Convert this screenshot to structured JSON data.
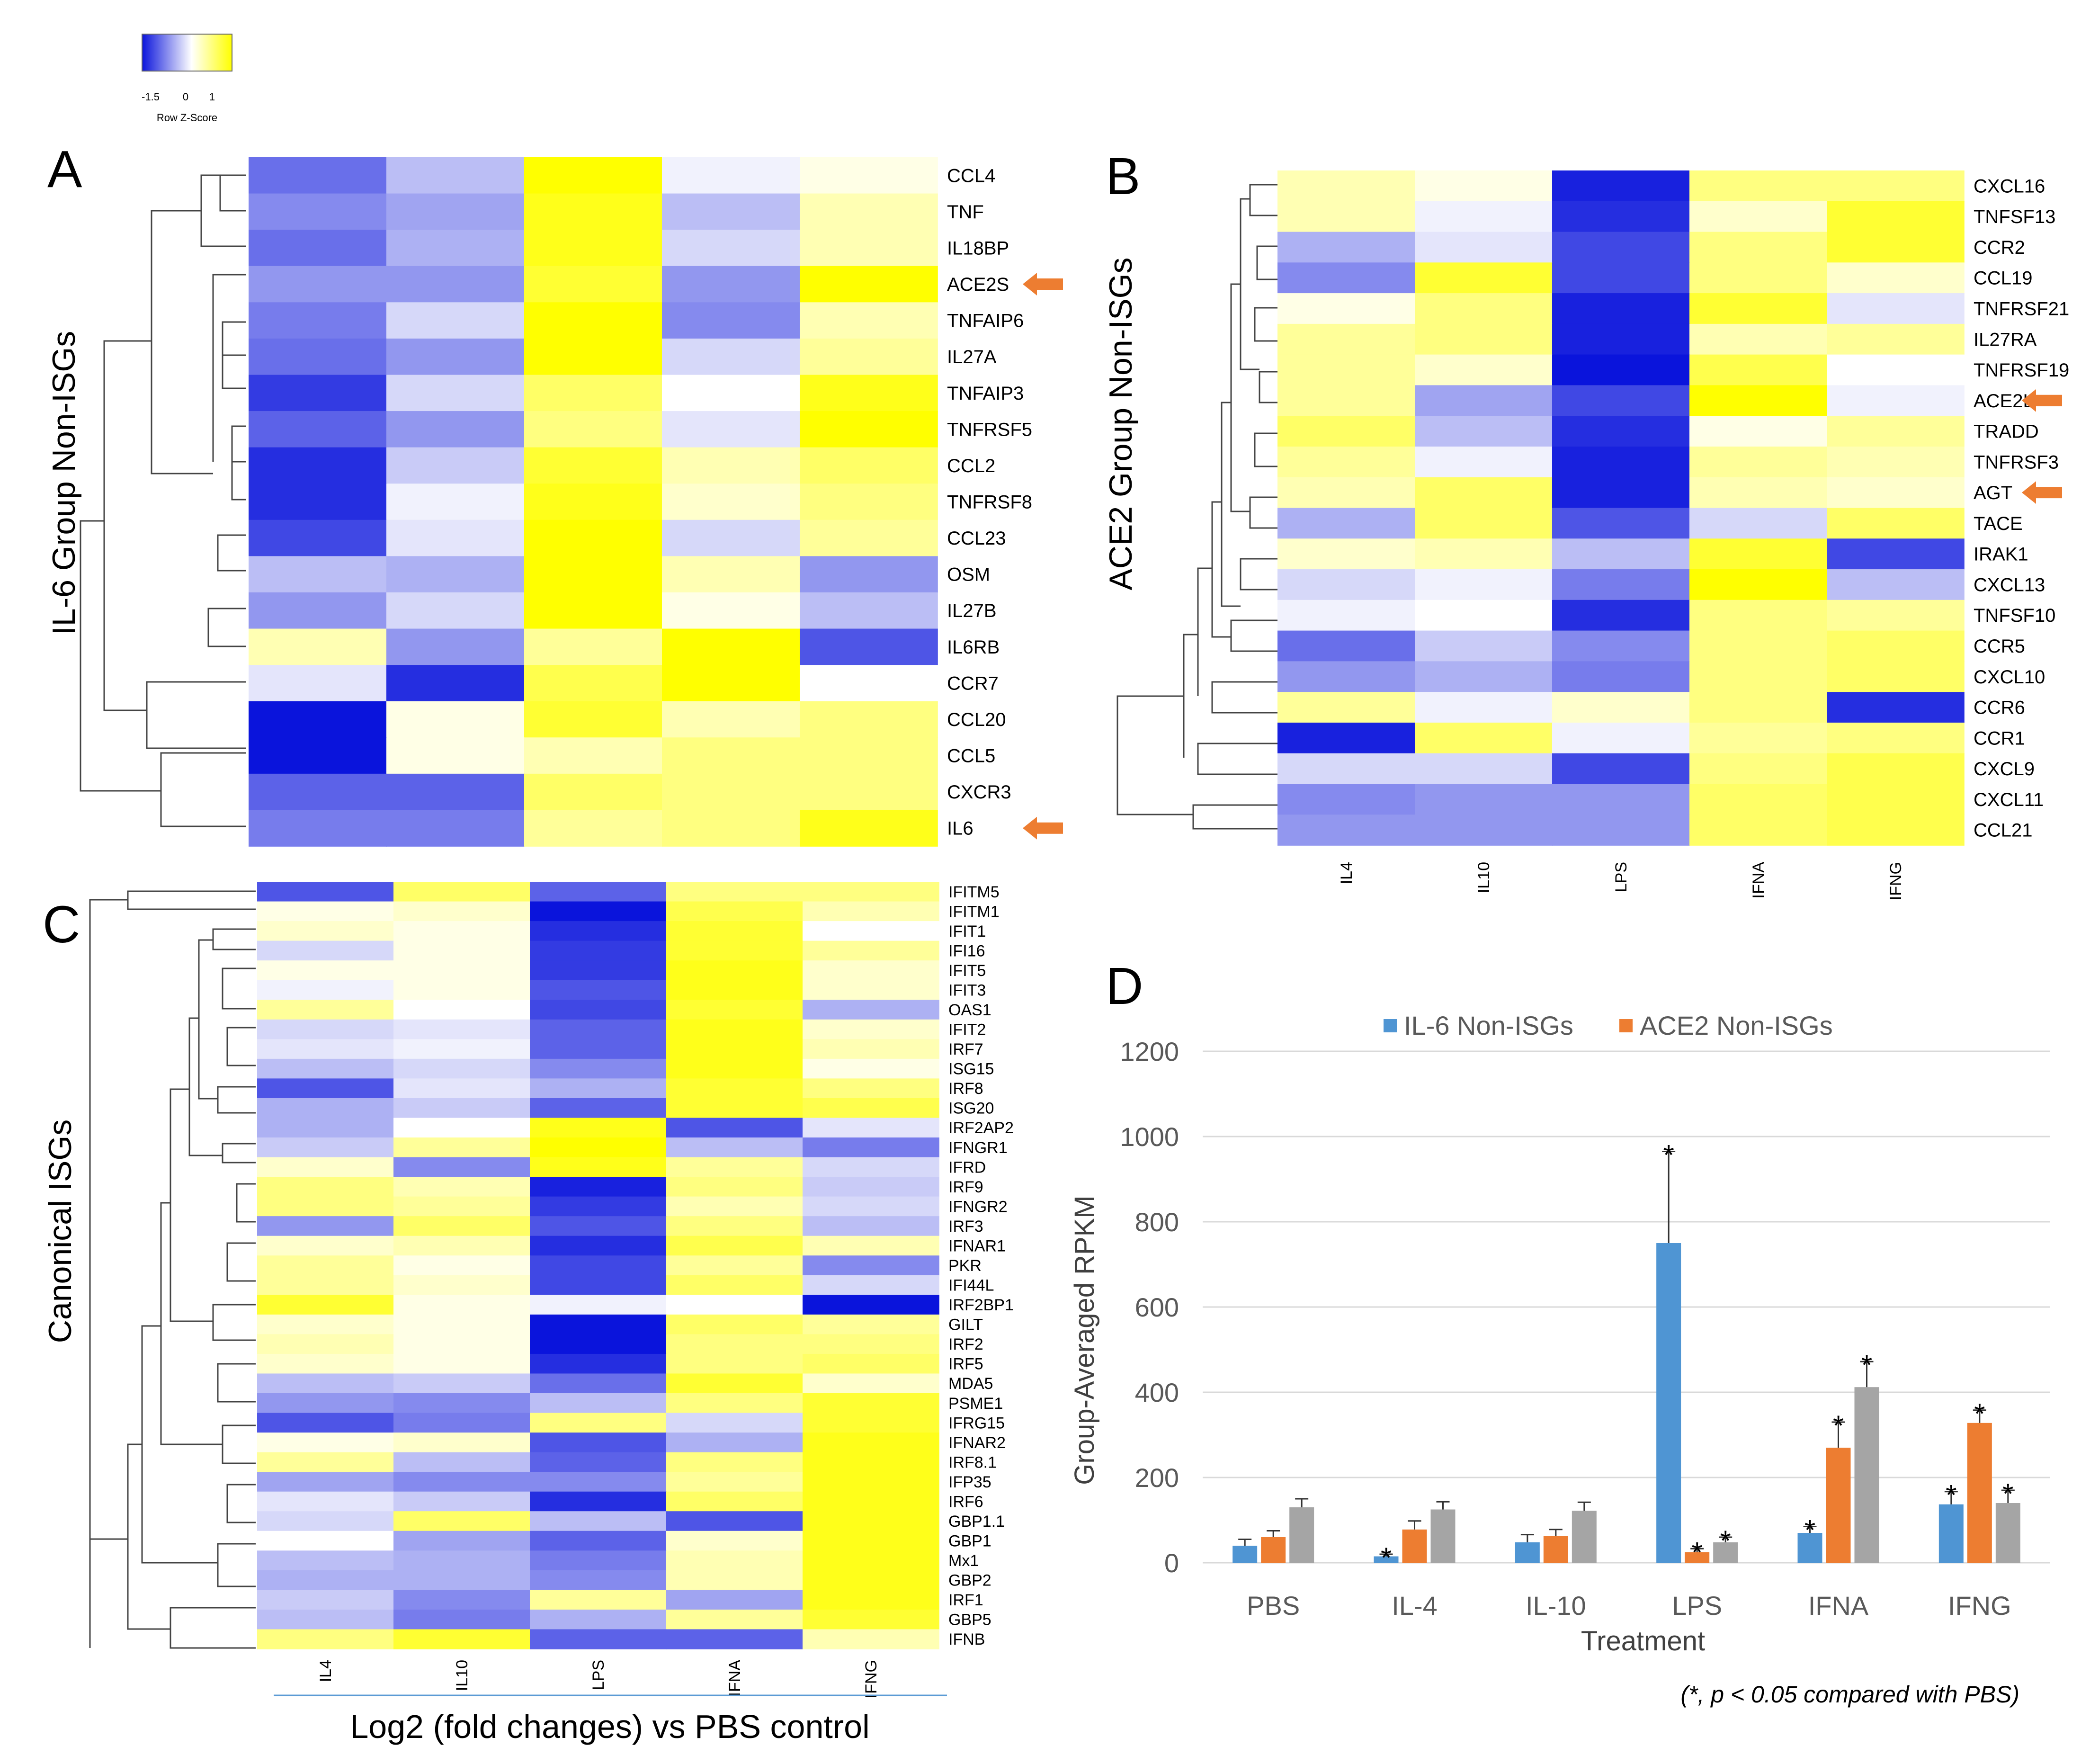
{
  "colors": {
    "low": "#0a14dc",
    "mid": "#ffffff",
    "high": "#ffff00",
    "il6_series": "#4f95d3",
    "ace2_series": "#ed7d31",
    "third_series": "#a5a5a5",
    "arrow": "#ed7d31"
  },
  "color_key": {
    "ticks": [
      "-1.5",
      "0",
      "1"
    ],
    "title": "Row Z-Score"
  },
  "footer": {
    "xtitle": "Log2 (fold changes) vs PBS control"
  },
  "chart_data": [
    {
      "id": "A",
      "type": "heatmap",
      "panel_label": "A",
      "title": "IL-6 Group Non-ISGs",
      "columns": [
        "IL4",
        "IL10",
        "LPS",
        "IFNA",
        "IFNG"
      ],
      "rows": [
        "CCL4",
        "TNF",
        "IL18BP",
        "ACE2S",
        "TNFAIP6",
        "IL27A",
        "TNFAIP3",
        "TNFRSF5",
        "CCL2",
        "TNFRSF8",
        "CCL23",
        "OSM",
        "IL27B",
        "IL6RB",
        "CCR7",
        "CCL20",
        "CCL5",
        "CXCR3",
        "IL6"
      ],
      "values": [
        [
          -1.1,
          -0.5,
          1.0,
          -0.1,
          0.1
        ],
        [
          -0.9,
          -0.7,
          0.9,
          -0.5,
          0.3
        ],
        [
          -1.1,
          -0.6,
          0.9,
          -0.3,
          0.3
        ],
        [
          -0.8,
          -0.8,
          0.8,
          -0.8,
          1.0
        ],
        [
          -1.0,
          -0.3,
          1.0,
          -0.9,
          0.3
        ],
        [
          -1.1,
          -0.8,
          1.0,
          -0.3,
          0.4
        ],
        [
          -1.5,
          -0.3,
          0.6,
          0.0,
          0.9
        ],
        [
          -1.2,
          -0.8,
          0.5,
          -0.2,
          1.0
        ],
        [
          -1.6,
          -0.4,
          0.8,
          0.3,
          0.6
        ],
        [
          -1.6,
          -0.1,
          0.9,
          0.2,
          0.5
        ],
        [
          -1.4,
          -0.2,
          1.0,
          -0.3,
          0.4
        ],
        [
          -0.5,
          -0.6,
          1.0,
          0.3,
          -0.8
        ],
        [
          -0.8,
          -0.3,
          1.0,
          0.1,
          -0.5
        ],
        [
          0.3,
          -0.8,
          0.4,
          1.0,
          -1.3
        ],
        [
          -0.2,
          -1.6,
          0.7,
          1.0,
          0.0
        ],
        [
          -1.8,
          0.1,
          0.8,
          0.3,
          0.5
        ],
        [
          -1.8,
          0.1,
          0.3,
          0.5,
          0.5
        ],
        [
          -1.2,
          -1.2,
          0.6,
          0.5,
          0.5
        ],
        [
          -1.0,
          -1.0,
          0.4,
          0.5,
          0.9
        ]
      ],
      "highlighted": [
        "ACE2S",
        "IL6"
      ]
    },
    {
      "id": "B",
      "type": "heatmap",
      "panel_label": "B",
      "title": "ACE2 Group Non-ISGs",
      "columns": [
        "IL4",
        "IL10",
        "LPS",
        "IFNA",
        "IFNG"
      ],
      "rows": [
        "CXCL16",
        "TNFSF13",
        "CCR2",
        "CCL19",
        "TNFRSF21",
        "IL27RA",
        "TNFRSF19",
        "ACE2L",
        "TRADD",
        "TNFRSF3",
        "AGT",
        "TACE",
        "IRAK1",
        "CXCL13",
        "TNFSF10",
        "CCR5",
        "CXCL10",
        "CCR6",
        "CCR1",
        "CXCL9",
        "CXCL11",
        "CCL21"
      ],
      "values": [
        [
          0.3,
          0.1,
          -1.7,
          0.5,
          0.5
        ],
        [
          0.3,
          -0.1,
          -1.6,
          0.2,
          0.8
        ],
        [
          -0.6,
          -0.2,
          -1.4,
          0.5,
          0.8
        ],
        [
          -0.9,
          0.8,
          -1.4,
          0.5,
          0.2
        ],
        [
          0.1,
          0.5,
          -1.7,
          0.8,
          -0.2
        ],
        [
          0.4,
          0.5,
          -1.7,
          0.3,
          0.4
        ],
        [
          0.4,
          0.2,
          -1.8,
          0.7,
          0.0
        ],
        [
          0.4,
          -0.7,
          -1.4,
          1.0,
          -0.1
        ],
        [
          0.6,
          -0.5,
          -1.6,
          0.1,
          0.4
        ],
        [
          0.4,
          -0.1,
          -1.7,
          0.4,
          0.3
        ],
        [
          0.3,
          0.6,
          -1.7,
          0.3,
          0.2
        ],
        [
          -0.6,
          0.6,
          -1.3,
          -0.3,
          0.6
        ],
        [
          0.2,
          0.3,
          -0.5,
          0.8,
          -1.4
        ],
        [
          -0.3,
          -0.1,
          -1.0,
          1.0,
          -0.5
        ],
        [
          -0.1,
          0.0,
          -1.6,
          0.5,
          0.4
        ],
        [
          -1.1,
          -0.4,
          -0.9,
          0.5,
          0.6
        ],
        [
          -0.8,
          -0.6,
          -1.0,
          0.5,
          0.6
        ],
        [
          0.4,
          -0.1,
          0.2,
          0.5,
          -1.6
        ],
        [
          -1.7,
          0.6,
          -0.1,
          0.4,
          0.5
        ],
        [
          -0.3,
          -0.3,
          -1.4,
          0.5,
          0.7
        ],
        [
          -0.9,
          -0.8,
          -0.8,
          0.6,
          0.7
        ],
        [
          -0.8,
          -0.8,
          -0.8,
          0.6,
          0.7
        ]
      ],
      "highlighted": [
        "ACE2L",
        "AGT"
      ]
    },
    {
      "id": "C",
      "type": "heatmap",
      "panel_label": "C",
      "title": "Canonical ISGs",
      "columns": [
        "IL4",
        "IL10",
        "LPS",
        "IFNA",
        "IFNG"
      ],
      "rows": [
        "IFITM5",
        "IFITM1",
        "IFIT1",
        "IFI16",
        "IFIT5",
        "IFIT3",
        "OAS1",
        "IFIT2",
        "IRF7",
        "ISG15",
        "IRF8",
        "ISG20",
        "IRF2AP2",
        "IFNGR1",
        "IFRD",
        "IRF9",
        "IFNGR2",
        "IRF3",
        "IFNAR1",
        "PKR",
        "IFI44L",
        "IRF2BP1",
        "GILT",
        "IRF2",
        "IRF5",
        "MDA5",
        "PSME1",
        "IFRG15",
        "IFNAR2",
        "IRF8.1",
        "IFP35",
        "IRF6",
        "GBP1.1",
        "GBP1",
        "Mx1",
        "GBP2",
        "IRF1",
        "GBP5",
        "IFNB"
      ],
      "values": [
        [
          -1.3,
          0.6,
          -1.2,
          0.5,
          0.5
        ],
        [
          0.1,
          0.2,
          -1.8,
          0.7,
          0.3
        ],
        [
          0.2,
          0.1,
          -1.6,
          0.8,
          0.0
        ],
        [
          -0.3,
          0.1,
          -1.5,
          0.8,
          0.4
        ],
        [
          0.1,
          0.1,
          -1.5,
          0.9,
          0.2
        ],
        [
          -0.1,
          0.1,
          -1.3,
          0.9,
          0.2
        ],
        [
          0.4,
          0.0,
          -1.4,
          0.8,
          -0.6
        ],
        [
          -0.3,
          -0.2,
          -1.2,
          0.9,
          0.2
        ],
        [
          -0.2,
          -0.1,
          -1.2,
          0.9,
          0.3
        ],
        [
          -0.5,
          -0.3,
          -0.9,
          0.9,
          0.1
        ],
        [
          -1.3,
          -0.2,
          -0.6,
          0.8,
          0.5
        ],
        [
          -0.6,
          -0.4,
          -1.2,
          0.8,
          0.7
        ],
        [
          -0.6,
          0.0,
          0.9,
          -1.3,
          -0.2
        ],
        [
          -0.4,
          0.4,
          1.0,
          -0.5,
          -1.0
        ],
        [
          0.2,
          -0.9,
          0.9,
          0.4,
          -0.3
        ],
        [
          0.5,
          0.3,
          -1.7,
          0.5,
          -0.4
        ],
        [
          0.5,
          0.4,
          -1.5,
          0.3,
          -0.3
        ],
        [
          -0.8,
          0.6,
          -1.3,
          0.5,
          -0.5
        ],
        [
          0.2,
          0.3,
          -1.6,
          0.7,
          0.3
        ],
        [
          0.4,
          0.1,
          -1.4,
          0.4,
          -0.9
        ],
        [
          0.4,
          0.2,
          -1.4,
          0.6,
          -0.3
        ],
        [
          0.8,
          0.1,
          -0.1,
          0.0,
          -1.8
        ],
        [
          0.2,
          0.1,
          -1.8,
          0.6,
          0.4
        ],
        [
          0.3,
          0.1,
          -1.8,
          0.5,
          0.5
        ],
        [
          0.2,
          0.1,
          -1.6,
          0.5,
          0.6
        ],
        [
          -0.5,
          -0.4,
          -1.1,
          0.8,
          0.2
        ],
        [
          -0.8,
          -0.9,
          -0.5,
          0.5,
          0.8
        ],
        [
          -1.3,
          -1.0,
          0.5,
          -0.3,
          0.8
        ],
        [
          0.1,
          0.2,
          -1.3,
          -0.6,
          0.9
        ],
        [
          0.4,
          -0.5,
          -1.2,
          0.5,
          0.9
        ],
        [
          -0.7,
          -0.9,
          -0.9,
          0.4,
          0.9
        ],
        [
          -0.2,
          -0.4,
          -1.6,
          0.6,
          0.9
        ],
        [
          -0.3,
          0.6,
          -0.5,
          -1.3,
          0.9
        ],
        [
          0.0,
          -0.7,
          -1.2,
          0.2,
          0.9
        ],
        [
          -0.5,
          -0.6,
          -1.0,
          0.3,
          0.9
        ],
        [
          -0.6,
          -0.6,
          -0.9,
          0.3,
          0.9
        ],
        [
          -0.4,
          -0.9,
          0.4,
          -0.7,
          0.9
        ],
        [
          -0.5,
          -1.0,
          -0.6,
          0.4,
          0.8
        ],
        [
          0.5,
          0.8,
          -1.2,
          -1.2,
          0.3
        ]
      ]
    },
    {
      "id": "D",
      "type": "bar",
      "panel_label": "D",
      "title": "",
      "categories": [
        "PBS",
        "IL-4",
        "IL-10",
        "LPS",
        "IFNA",
        "IFNG"
      ],
      "series": [
        {
          "name": "IL-6 Non-ISGs",
          "values": [
            40,
            15,
            48,
            750,
            70,
            137
          ],
          "errors": [
            15,
            5,
            18,
            215,
            15,
            30
          ],
          "significant": [
            false,
            true,
            false,
            true,
            true,
            true
          ]
        },
        {
          "name": "ACE2 Non-ISGs",
          "values": [
            60,
            78,
            63,
            25,
            270,
            328
          ],
          "errors": [
            15,
            20,
            15,
            8,
            60,
            30
          ],
          "significant": [
            false,
            false,
            false,
            true,
            true,
            true
          ]
        },
        {
          "name": "",
          "values": [
            130,
            125,
            122,
            48,
            412,
            140
          ],
          "errors": [
            20,
            18,
            20,
            12,
            60,
            30
          ],
          "significant": [
            false,
            false,
            false,
            true,
            true,
            true
          ]
        }
      ],
      "xlabel": "Treatment",
      "ylabel": "Group-Averaged  RPKM",
      "ylim": [
        0,
        1200
      ],
      "yticks": [
        "0",
        "200",
        "400",
        "600",
        "800",
        "1000",
        "1200"
      ],
      "legend": "top",
      "grid": true,
      "marker": "*",
      "note": "(*, p < 0.05 compared with PBS)"
    }
  ]
}
